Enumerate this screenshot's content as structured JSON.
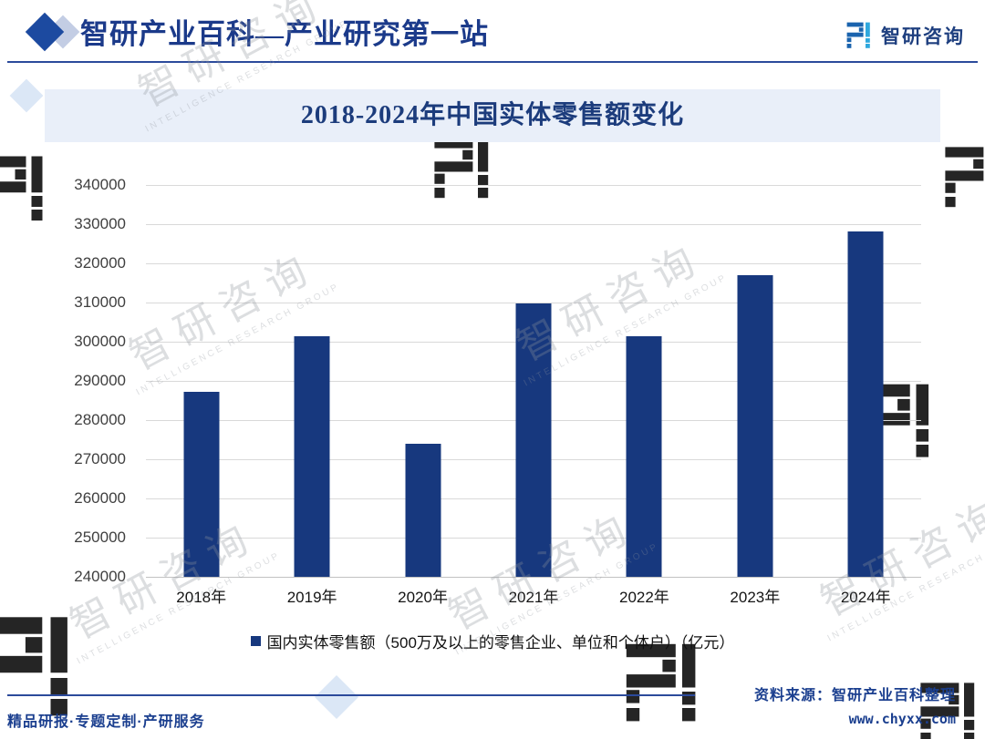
{
  "header": {
    "brand_title": "智研产业百科—产业研究第一站",
    "logo_text": "智研咨询"
  },
  "watermark": {
    "text": "智研咨询",
    "subtext": "INTELLIGENCE RESEARCH GROUP"
  },
  "chart_data": {
    "type": "bar",
    "title": "2018-2024年中国实体零售额变化",
    "categories": [
      "2018年",
      "2019年",
      "2020年",
      "2021年",
      "2022年",
      "2023年",
      "2024年"
    ],
    "values": [
      287300,
      301400,
      273900,
      309700,
      301300,
      316900,
      328100
    ],
    "legend": "国内实体零售额（500万及以上的零售企业、单位和个体户）（亿元）",
    "xlabel": "",
    "ylabel": "",
    "ylim": [
      240000,
      340000
    ],
    "ytick_step": 10000,
    "grid": true,
    "legend_position": "bottom",
    "bar_color": "#17387E"
  },
  "footer": {
    "source": "资料来源：智研产业百科整理",
    "website": "www.chyxx.com",
    "services": "精品研报·专题定制·产研服务"
  },
  "colors": {
    "accent_navy": "#1B3A8A",
    "bar": "#17387E",
    "banner_bg": "#E9EFF9",
    "gridline": "#D9D9D9",
    "rule_blue": "#2B4A9B",
    "logo_dark": "#1A63AE",
    "logo_cyan": "#2FA8DD"
  }
}
